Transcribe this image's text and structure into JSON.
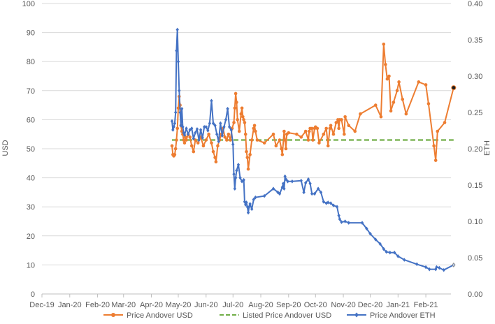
{
  "chart_data": {
    "type": "line",
    "title": "",
    "xlabel": "",
    "ylabel": "USD",
    "y2label": "ETH",
    "x_tick_labels": [
      "Dec-19",
      "Jan-20",
      "Feb-20",
      "Mar-20",
      "Apr-20",
      "May-20",
      "Jun-20",
      "Jul-20",
      "Aug-20",
      "Sep-20",
      "Oct-20",
      "Nov-20",
      "Dec-20",
      "Jan-21",
      "Feb-21"
    ],
    "x_tick_dates": [
      "2019-12-01",
      "2020-01-01",
      "2020-02-01",
      "2020-03-01",
      "2020-04-01",
      "2020-05-01",
      "2020-06-01",
      "2020-07-01",
      "2020-08-01",
      "2020-09-01",
      "2020-10-01",
      "2020-11-01",
      "2020-12-01",
      "2021-01-01",
      "2021-02-01"
    ],
    "xlim": [
      "2019-12-01",
      "2021-03-01"
    ],
    "ylim": [
      0,
      100
    ],
    "yticks": [
      "0",
      "10",
      "20",
      "30",
      "40",
      "50",
      "60",
      "70",
      "80",
      "90",
      "100"
    ],
    "y2lim": [
      0,
      0.4
    ],
    "y2ticks": [
      "0.00",
      "0.05",
      "0.10",
      "0.15",
      "0.20",
      "0.25",
      "0.30",
      "0.35",
      "0.40"
    ],
    "legend_position": "bottom",
    "series": [
      {
        "name": "Price Andover USD",
        "axis": "left",
        "color": "#ED7D31",
        "style": "solid-marker",
        "points": [
          [
            "2020-04-24",
            51
          ],
          [
            "2020-04-25",
            48
          ],
          [
            "2020-04-26",
            47.5
          ],
          [
            "2020-04-27",
            48
          ],
          [
            "2020-04-28",
            50
          ],
          [
            "2020-04-29",
            53
          ],
          [
            "2020-04-30",
            57
          ],
          [
            "2020-05-01",
            64
          ],
          [
            "2020-05-02",
            68
          ],
          [
            "2020-05-03",
            65
          ],
          [
            "2020-05-04",
            58
          ],
          [
            "2020-05-05",
            56
          ],
          [
            "2020-05-06",
            55
          ],
          [
            "2020-05-07",
            53
          ],
          [
            "2020-05-08",
            52
          ],
          [
            "2020-05-09",
            54
          ],
          [
            "2020-05-10",
            53
          ],
          [
            "2020-05-12",
            55
          ],
          [
            "2020-05-14",
            54
          ],
          [
            "2020-05-16",
            51
          ],
          [
            "2020-05-18",
            49
          ],
          [
            "2020-05-20",
            53
          ],
          [
            "2020-05-23",
            52
          ],
          [
            "2020-05-26",
            54
          ],
          [
            "2020-05-29",
            51
          ],
          [
            "2020-06-01",
            53
          ],
          [
            "2020-06-04",
            55
          ],
          [
            "2020-06-07",
            52
          ],
          [
            "2020-06-09",
            49
          ],
          [
            "2020-06-11",
            47
          ],
          [
            "2020-06-12",
            45.5
          ],
          [
            "2020-06-14",
            51
          ],
          [
            "2020-06-16",
            53
          ],
          [
            "2020-06-18",
            55
          ],
          [
            "2020-06-20",
            57
          ],
          [
            "2020-06-22",
            54
          ],
          [
            "2020-06-24",
            53
          ],
          [
            "2020-06-26",
            55
          ],
          [
            "2020-06-28",
            53
          ],
          [
            "2020-06-30",
            57
          ],
          [
            "2020-07-02",
            59
          ],
          [
            "2020-07-03",
            64
          ],
          [
            "2020-07-04",
            69
          ],
          [
            "2020-07-05",
            66
          ],
          [
            "2020-07-06",
            60
          ],
          [
            "2020-07-08",
            56
          ],
          [
            "2020-07-10",
            62
          ],
          [
            "2020-07-11",
            64
          ],
          [
            "2020-07-12",
            61
          ],
          [
            "2020-07-13",
            60
          ],
          [
            "2020-07-14",
            59
          ],
          [
            "2020-07-15",
            55
          ],
          [
            "2020-07-16",
            49
          ],
          [
            "2020-07-17",
            47
          ],
          [
            "2020-07-18",
            43
          ],
          [
            "2020-07-20",
            48
          ],
          [
            "2020-07-22",
            53
          ],
          [
            "2020-07-24",
            57
          ],
          [
            "2020-07-25",
            58
          ],
          [
            "2020-07-26",
            56
          ],
          [
            "2020-07-28",
            53
          ],
          [
            "2020-08-05",
            52
          ],
          [
            "2020-08-15",
            55
          ],
          [
            "2020-08-18",
            51
          ],
          [
            "2020-08-22",
            53
          ],
          [
            "2020-08-24",
            50
          ],
          [
            "2020-08-25",
            48
          ],
          [
            "2020-08-27",
            56
          ],
          [
            "2020-08-28",
            53
          ],
          [
            "2020-08-29",
            50
          ],
          [
            "2020-08-30",
            55
          ],
          [
            "2020-09-01",
            55.5
          ],
          [
            "2020-09-10",
            55
          ],
          [
            "2020-09-15",
            54
          ],
          [
            "2020-09-20",
            56
          ],
          [
            "2020-09-23",
            53
          ],
          [
            "2020-09-24",
            56
          ],
          [
            "2020-09-25",
            57
          ],
          [
            "2020-09-27",
            57
          ],
          [
            "2020-09-28",
            53
          ],
          [
            "2020-09-30",
            57
          ],
          [
            "2020-10-01",
            57.5
          ],
          [
            "2020-10-03",
            57
          ],
          [
            "2020-10-05",
            52
          ],
          [
            "2020-10-10",
            55
          ],
          [
            "2020-10-13",
            57
          ],
          [
            "2020-10-15",
            51
          ],
          [
            "2020-10-17",
            57
          ],
          [
            "2020-10-18",
            58
          ],
          [
            "2020-10-21",
            55
          ],
          [
            "2020-10-24",
            59
          ],
          [
            "2020-10-26",
            60
          ],
          [
            "2020-10-27",
            57
          ],
          [
            "2020-10-28",
            60
          ],
          [
            "2020-10-30",
            60
          ],
          [
            "2020-11-02",
            55
          ],
          [
            "2020-11-03",
            61
          ],
          [
            "2020-11-07",
            58
          ],
          [
            "2020-11-14",
            56
          ],
          [
            "2020-11-20",
            62
          ],
          [
            "2020-12-07",
            65
          ],
          [
            "2020-12-13",
            61
          ],
          [
            "2020-12-16",
            86
          ],
          [
            "2020-12-18",
            79
          ],
          [
            "2020-12-20",
            74
          ],
          [
            "2020-12-22",
            75
          ],
          [
            "2020-12-24",
            63
          ],
          [
            "2020-12-27",
            66
          ],
          [
            "2020-12-31",
            70
          ],
          [
            "2021-01-02",
            73
          ],
          [
            "2021-01-06",
            67
          ],
          [
            "2021-01-10",
            62
          ],
          [
            "2021-01-24",
            73
          ],
          [
            "2021-02-01",
            72
          ],
          [
            "2021-02-04",
            65.5
          ],
          [
            "2021-02-10",
            51
          ],
          [
            "2021-02-12",
            46
          ],
          [
            "2021-02-14",
            56
          ],
          [
            "2021-02-22",
            59
          ],
          [
            "2021-03-04",
            71
          ]
        ]
      },
      {
        "name": "Listed Price Andover USD",
        "axis": "left",
        "color": "#70AD47",
        "style": "dashed",
        "points": [
          [
            "2020-04-24",
            53
          ],
          [
            "2021-03-04",
            53
          ]
        ]
      },
      {
        "name": "Price Andover ETH",
        "axis": "right",
        "color": "#4472C4",
        "style": "solid-marker",
        "points": [
          [
            "2020-04-24",
            0.238
          ],
          [
            "2020-04-25",
            0.226
          ],
          [
            "2020-04-26",
            0.23
          ],
          [
            "2020-04-27",
            0.235
          ],
          [
            "2020-04-28",
            0.25
          ],
          [
            "2020-04-29",
            0.335
          ],
          [
            "2020-04-30",
            0.364
          ],
          [
            "2020-05-01",
            0.32
          ],
          [
            "2020-05-02",
            0.28
          ],
          [
            "2020-05-03",
            0.25
          ],
          [
            "2020-05-04",
            0.232
          ],
          [
            "2020-05-05",
            0.255
          ],
          [
            "2020-05-06",
            0.23
          ],
          [
            "2020-05-07",
            0.222
          ],
          [
            "2020-05-08",
            0.219
          ],
          [
            "2020-05-10",
            0.228
          ],
          [
            "2020-05-12",
            0.22
          ],
          [
            "2020-05-14",
            0.226
          ],
          [
            "2020-05-16",
            0.228
          ],
          [
            "2020-05-18",
            0.214
          ],
          [
            "2020-05-20",
            0.222
          ],
          [
            "2020-05-22",
            0.227
          ],
          [
            "2020-05-24",
            0.212
          ],
          [
            "2020-05-26",
            0.226
          ],
          [
            "2020-05-28",
            0.215
          ],
          [
            "2020-05-30",
            0.23
          ],
          [
            "2020-06-01",
            0.23
          ],
          [
            "2020-06-03",
            0.225
          ],
          [
            "2020-06-05",
            0.235
          ],
          [
            "2020-06-07",
            0.266
          ],
          [
            "2020-06-09",
            0.235
          ],
          [
            "2020-06-11",
            0.232
          ],
          [
            "2020-06-13",
            0.22
          ],
          [
            "2020-06-15",
            0.21
          ],
          [
            "2020-06-17",
            0.235
          ],
          [
            "2020-06-19",
            0.218
          ],
          [
            "2020-06-21",
            0.23
          ],
          [
            "2020-06-23",
            0.24
          ],
          [
            "2020-06-25",
            0.255
          ],
          [
            "2020-06-27",
            0.23
          ],
          [
            "2020-06-29",
            0.226
          ],
          [
            "2020-07-01",
            0.206
          ],
          [
            "2020-07-02",
            0.165
          ],
          [
            "2020-07-03",
            0.145
          ],
          [
            "2020-07-04",
            0.16
          ],
          [
            "2020-07-05",
            0.17
          ],
          [
            "2020-07-07",
            0.178
          ],
          [
            "2020-07-09",
            0.16
          ],
          [
            "2020-07-11",
            0.155
          ],
          [
            "2020-07-13",
            0.157
          ],
          [
            "2020-07-14",
            0.127
          ],
          [
            "2020-07-15",
            0.123
          ],
          [
            "2020-07-16",
            0.126
          ],
          [
            "2020-07-17",
            0.12
          ],
          [
            "2020-07-18",
            0.112
          ],
          [
            "2020-07-19",
            0.12
          ],
          [
            "2020-07-20",
            0.124
          ],
          [
            "2020-07-22",
            0.117
          ],
          [
            "2020-07-24",
            0.13
          ],
          [
            "2020-07-26",
            0.133
          ],
          [
            "2020-08-05",
            0.135
          ],
          [
            "2020-08-15",
            0.145
          ],
          [
            "2020-08-20",
            0.14
          ],
          [
            "2020-08-22",
            0.138
          ],
          [
            "2020-08-25",
            0.147
          ],
          [
            "2020-08-26",
            0.152
          ],
          [
            "2020-08-27",
            0.145
          ],
          [
            "2020-08-28",
            0.162
          ],
          [
            "2020-08-29",
            0.158
          ],
          [
            "2020-08-31",
            0.155
          ],
          [
            "2020-09-05",
            0.155
          ],
          [
            "2020-09-15",
            0.156
          ],
          [
            "2020-09-18",
            0.14
          ],
          [
            "2020-09-20",
            0.153
          ],
          [
            "2020-09-23",
            0.158
          ],
          [
            "2020-09-25",
            0.152
          ],
          [
            "2020-09-27",
            0.138
          ],
          [
            "2020-09-30",
            0.138
          ],
          [
            "2020-10-04",
            0.145
          ],
          [
            "2020-10-07",
            0.14
          ],
          [
            "2020-10-10",
            0.127
          ],
          [
            "2020-10-13",
            0.125
          ],
          [
            "2020-10-15",
            0.126
          ],
          [
            "2020-10-18",
            0.125
          ],
          [
            "2020-10-21",
            0.122
          ],
          [
            "2020-10-25",
            0.12
          ],
          [
            "2020-10-27",
            0.108
          ],
          [
            "2020-10-28",
            0.103
          ],
          [
            "2020-10-30",
            0.099
          ],
          [
            "2020-11-03",
            0.1
          ],
          [
            "2020-11-07",
            0.098
          ],
          [
            "2020-11-22",
            0.098
          ],
          [
            "2020-11-27",
            0.09
          ],
          [
            "2020-12-01",
            0.083
          ],
          [
            "2020-12-07",
            0.075
          ],
          [
            "2020-12-12",
            0.069
          ],
          [
            "2020-12-16",
            0.062
          ],
          [
            "2020-12-19",
            0.058
          ],
          [
            "2020-12-23",
            0.057
          ],
          [
            "2020-12-28",
            0.057
          ],
          [
            "2021-01-01",
            0.052
          ],
          [
            "2021-01-08",
            0.047
          ],
          [
            "2021-01-22",
            0.041
          ],
          [
            "2021-02-01",
            0.037
          ],
          [
            "2021-02-05",
            0.034
          ],
          [
            "2021-02-12",
            0.034
          ],
          [
            "2021-02-13",
            0.037
          ],
          [
            "2021-02-16",
            0.036
          ],
          [
            "2021-02-21",
            0.033
          ],
          [
            "2021-03-04",
            0.04
          ]
        ]
      }
    ]
  }
}
